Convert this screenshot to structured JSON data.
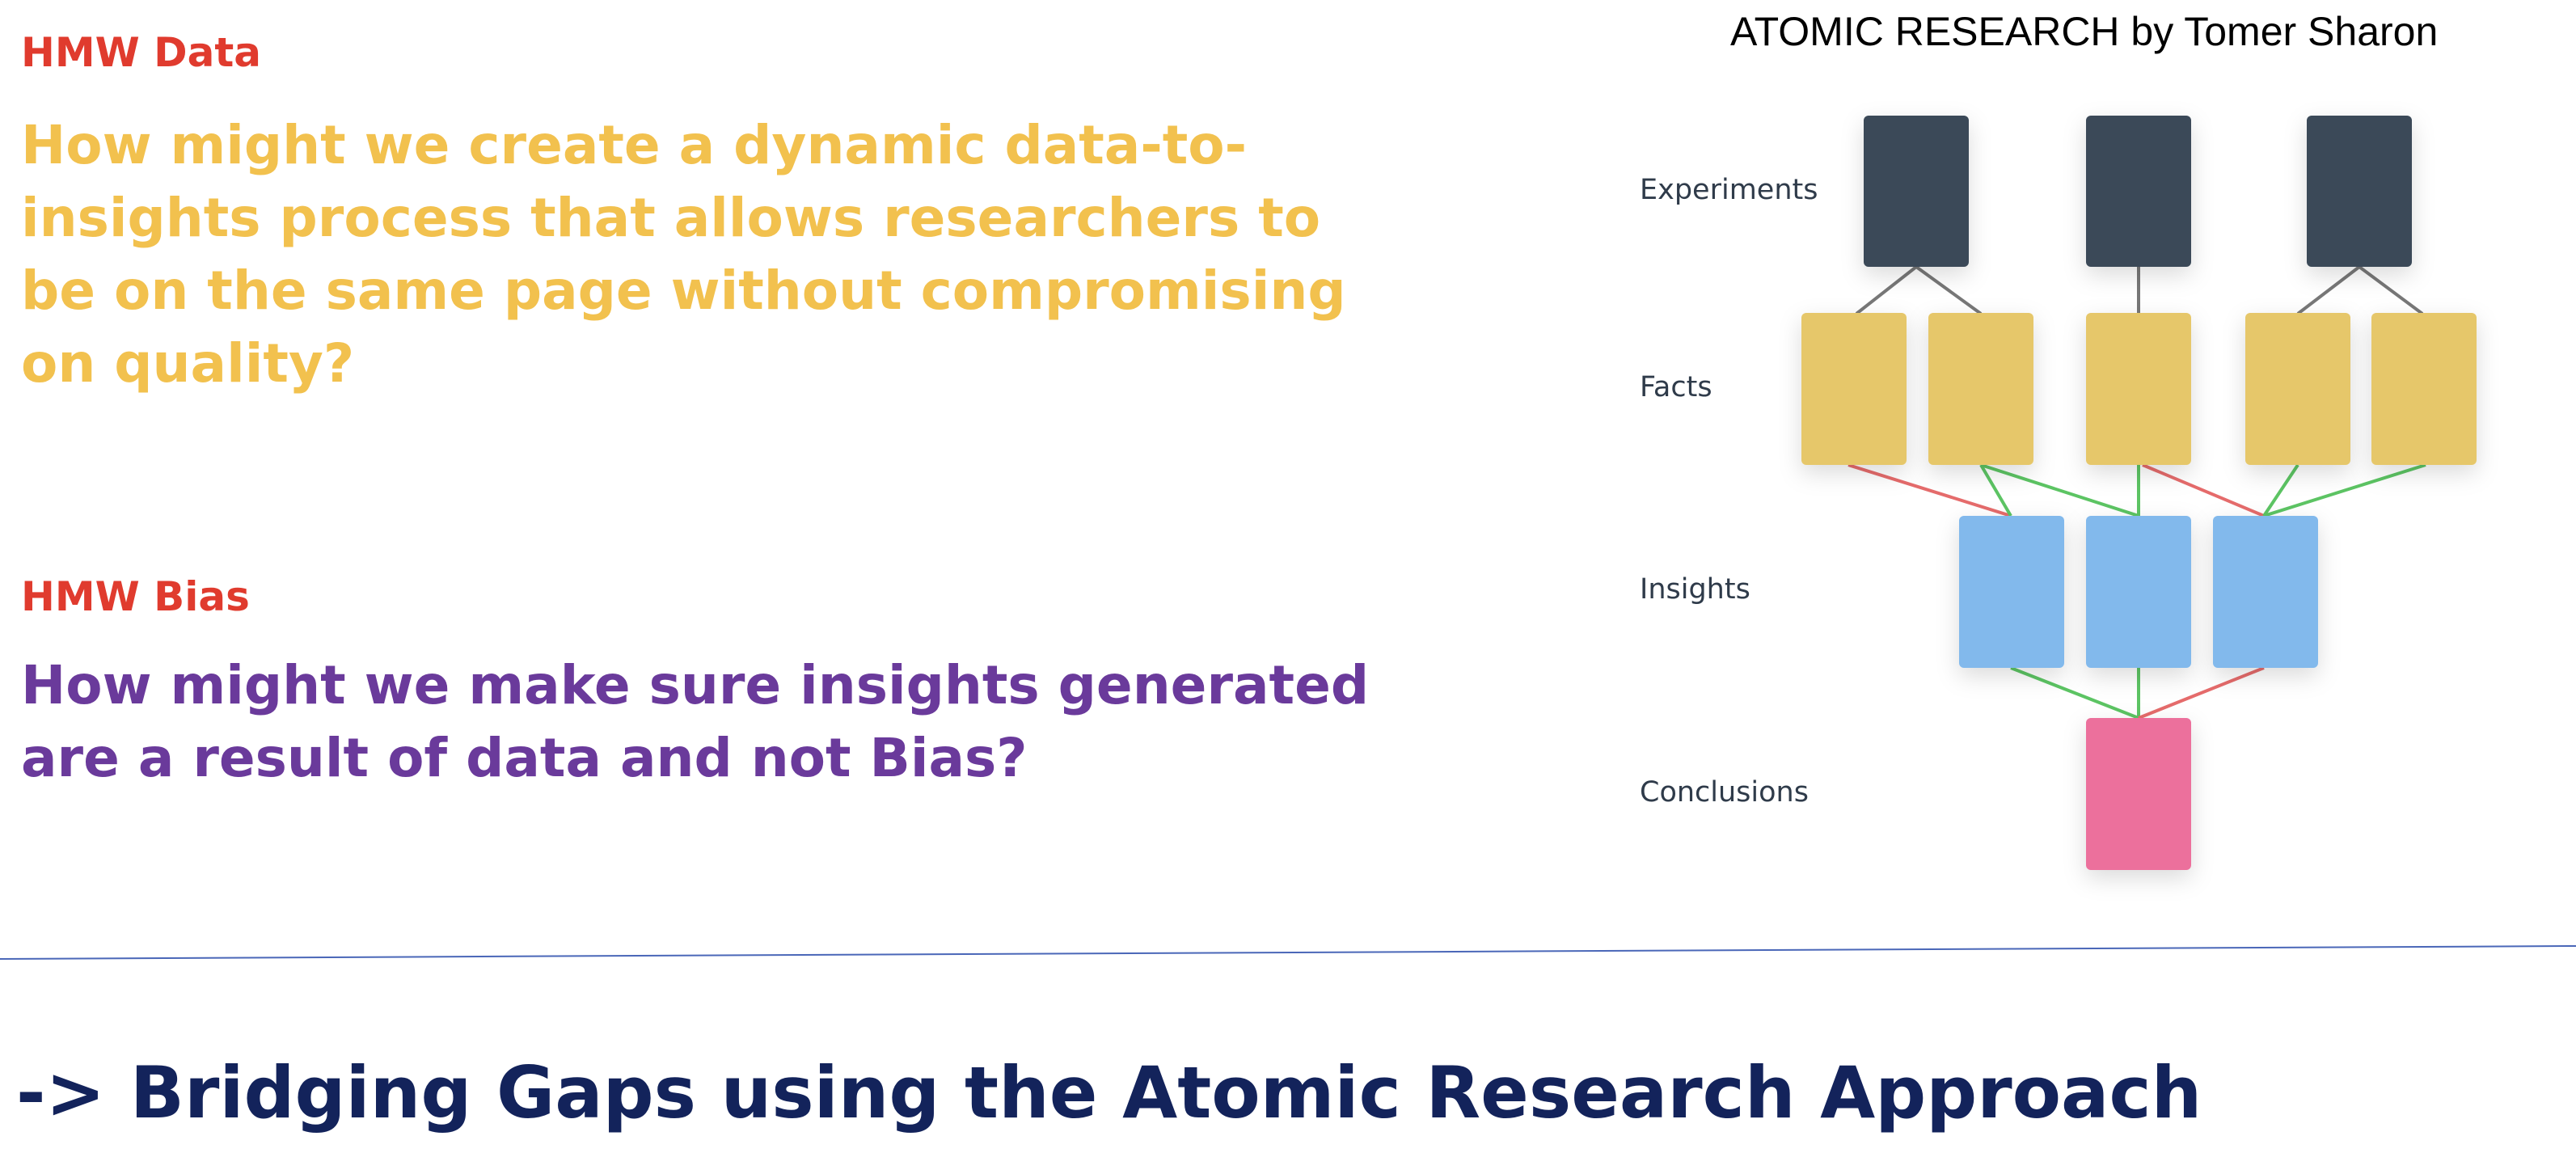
{
  "hmw_data": {
    "label": "HMW Data",
    "question": "How might we create a dynamic data-to-insights process that allows researchers to be on the same page without compromising on quality?"
  },
  "hmw_bias": {
    "label": "HMW Bias",
    "question": "How might we make sure insights generated are a result of data and not Bias?"
  },
  "diagram": {
    "title": "ATOMIC RESEARCH by Tomer Sharon",
    "rows": {
      "experiments": "Experiments",
      "facts": "Facts",
      "insights": "Insights",
      "conclusions": "Conclusions"
    },
    "colors": {
      "experiment": "#3a4a58",
      "fact": "#e6c76a",
      "insight": "#82b9ec",
      "conclusion": "#ec6f9c",
      "link_neutral": "#777777",
      "link_supports": "#5cc463",
      "link_contradicts": "#e56b6b",
      "divider": "#4a67b8"
    }
  },
  "footer": {
    "title": "-> Bridging Gaps using the Atomic Research Approach"
  }
}
